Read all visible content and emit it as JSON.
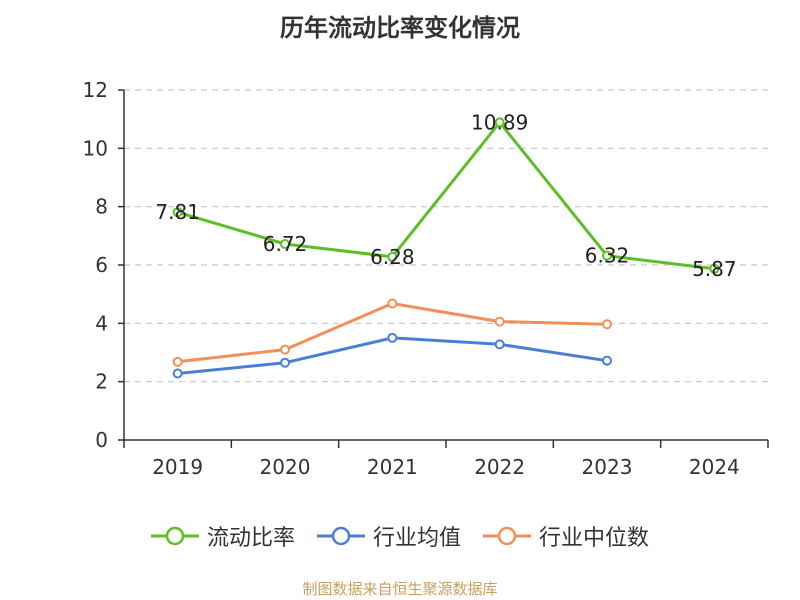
{
  "title": "历年流动比率变化情况",
  "source": "制图数据来自恒生聚源数据库",
  "colors": {
    "grid": "#c8c8c8",
    "axis": "#333333",
    "text": "#333333",
    "source": "#c8a060"
  },
  "legend": [
    {
      "label": "流动比率",
      "color": "#5bbf25",
      "icon": "circle-line-marker"
    },
    {
      "label": "行业均值",
      "color": "#4a7fd6",
      "icon": "circle-line-marker"
    },
    {
      "label": "行业中位数",
      "color": "#f28e5a",
      "icon": "circle-line-marker"
    }
  ],
  "chart_data": {
    "type": "line",
    "title": "历年流动比率变化情况",
    "categories": [
      "2019",
      "2020",
      "2021",
      "2022",
      "2023",
      "2024"
    ],
    "ylim": [
      0,
      12
    ],
    "yticks": [
      0,
      2,
      4,
      6,
      8,
      10,
      12
    ],
    "grid": true,
    "legend_position": "bottom",
    "series": [
      {
        "name": "流动比率",
        "color": "#5bbf25",
        "values": [
          7.81,
          6.72,
          6.28,
          10.89,
          6.32,
          5.87
        ],
        "labels": [
          "7.81",
          "6.72",
          "6.28",
          "10.89",
          "6.32",
          "5.87"
        ],
        "show_labels": true
      },
      {
        "name": "行业均值",
        "color": "#4a7fd6",
        "values": [
          2.28,
          2.65,
          3.5,
          3.28,
          2.72,
          null
        ],
        "show_labels": false
      },
      {
        "name": "行业中位数",
        "color": "#f28e5a",
        "values": [
          2.68,
          3.1,
          4.68,
          4.06,
          3.97,
          null
        ],
        "show_labels": false
      }
    ]
  }
}
